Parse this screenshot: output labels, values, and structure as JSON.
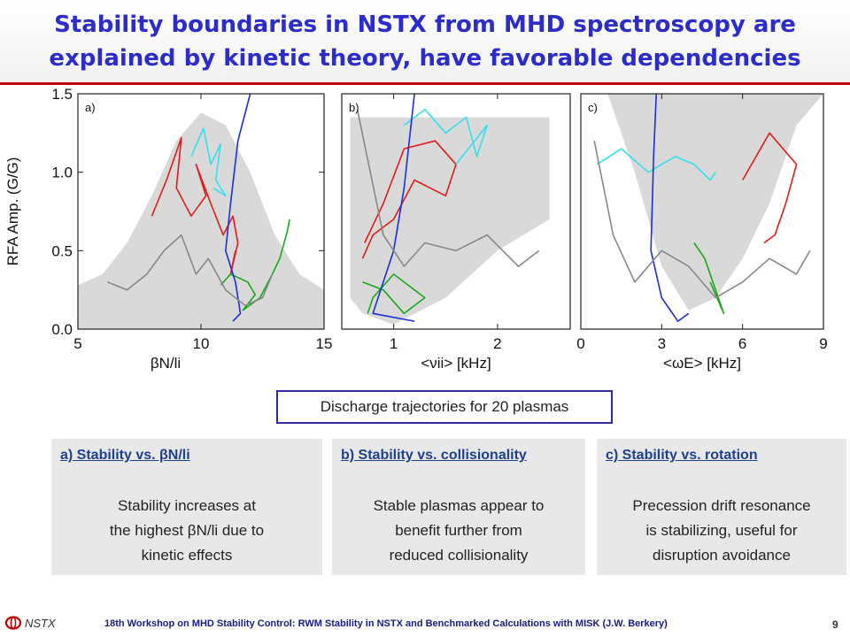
{
  "header": {
    "title_line1": "Stability boundaries in NSTX from MHD spectroscopy are",
    "title_line2": "explained by kinetic theory, have favorable dependencies"
  },
  "chart_data": [
    {
      "type": "line",
      "panel_label": "a)",
      "xlabel": "βN/li",
      "ylabel": "RFA Amp. (G/G)",
      "xlim": [
        5,
        15
      ],
      "ylim": [
        0.0,
        1.5
      ],
      "xticks": [
        "5",
        "10",
        "15"
      ],
      "yticks": [
        "0.0",
        "0.5",
        "1.0",
        "1.5"
      ],
      "stable_region": {
        "type": "bell",
        "x": [
          5,
          6,
          7,
          8,
          9,
          10,
          11,
          12,
          13,
          14,
          15
        ],
        "y": [
          0.28,
          0.35,
          0.55,
          0.85,
          1.2,
          1.38,
          1.3,
          1.0,
          0.6,
          0.35,
          0.25
        ]
      },
      "series": [
        {
          "color": "#e21a1a",
          "x": [
            8.0,
            8.6,
            9.2,
            9.0,
            9.6,
            10.2,
            9.8,
            10.4,
            10.9,
            11.3,
            11.5,
            11.2,
            11.4
          ],
          "y": [
            0.72,
            0.95,
            1.22,
            0.9,
            0.72,
            0.85,
            1.05,
            0.8,
            0.6,
            0.72,
            0.55,
            0.35,
            0.5
          ]
        },
        {
          "color": "#1aa81a",
          "x": [
            10.8,
            11.2,
            11.9,
            12.2,
            11.7,
            12.4,
            12.9,
            13.2,
            13.5,
            13.6
          ],
          "y": [
            0.28,
            0.35,
            0.3,
            0.22,
            0.12,
            0.2,
            0.35,
            0.45,
            0.62,
            0.7
          ]
        },
        {
          "color": "#33e0f0",
          "x": [
            9.6,
            10.1,
            10.4,
            10.8,
            10.6,
            11.0,
            10.5
          ],
          "y": [
            1.1,
            1.28,
            1.05,
            1.18,
            0.95,
            0.85,
            0.9
          ]
        },
        {
          "color": "#1a2fd8",
          "x": [
            12.0,
            11.5,
            11.2,
            11.0,
            11.4,
            11.6,
            11.3
          ],
          "y": [
            1.5,
            1.2,
            0.8,
            0.5,
            0.3,
            0.1,
            0.05
          ]
        },
        {
          "color": "#888888",
          "x": [
            6.2,
            7.0,
            7.8,
            8.5,
            9.2,
            9.8,
            10.3,
            11.0,
            11.8,
            12.5,
            12.9
          ],
          "y": [
            0.3,
            0.25,
            0.35,
            0.5,
            0.6,
            0.35,
            0.45,
            0.25,
            0.15,
            0.2,
            0.35
          ]
        }
      ]
    },
    {
      "type": "line",
      "panel_label": "b)",
      "xlabel": "<νii> [kHz]",
      "ylabel": "",
      "xlim": [
        0.5,
        2.7
      ],
      "ylim": [
        0.0,
        1.5
      ],
      "xticks": [
        "1",
        "2"
      ],
      "yticks": [],
      "stable_region": {
        "type": "box_with_curve",
        "x": [
          0.58,
          0.7,
          1.0,
          1.5,
          2.0,
          2.5,
          2.5,
          0.58
        ],
        "y": [
          0.2,
          0.1,
          0.03,
          0.2,
          0.5,
          0.7,
          1.35,
          1.35
        ]
      },
      "series": [
        {
          "color": "#e21a1a",
          "x": [
            0.72,
            0.9,
            1.1,
            1.4,
            1.6,
            1.5,
            1.2,
            1.0,
            0.8,
            0.7
          ],
          "y": [
            0.55,
            0.8,
            1.15,
            1.2,
            1.05,
            0.85,
            0.95,
            0.7,
            0.6,
            0.45
          ]
        },
        {
          "color": "#1aa81a",
          "x": [
            0.7,
            0.9,
            1.1,
            1.3,
            1.0,
            0.8,
            0.75
          ],
          "y": [
            0.3,
            0.25,
            0.1,
            0.2,
            0.35,
            0.2,
            0.1
          ]
        },
        {
          "color": "#33e0f0",
          "x": [
            1.1,
            1.3,
            1.5,
            1.7,
            1.8,
            1.9,
            1.6
          ],
          "y": [
            1.3,
            1.4,
            1.25,
            1.35,
            1.1,
            1.3,
            1.05
          ]
        },
        {
          "color": "#1a2fd8",
          "x": [
            1.2,
            1.1,
            1.0,
            0.9,
            0.8,
            1.2
          ],
          "y": [
            1.5,
            0.9,
            0.5,
            0.3,
            0.1,
            0.05
          ]
        },
        {
          "color": "#888888",
          "x": [
            0.65,
            0.9,
            1.1,
            1.3,
            1.6,
            1.9,
            2.2,
            2.4
          ],
          "y": [
            1.4,
            0.6,
            0.4,
            0.55,
            0.5,
            0.6,
            0.4,
            0.5
          ]
        }
      ]
    },
    {
      "type": "line",
      "panel_label": "c)",
      "xlabel": "<ωE> [kHz]",
      "ylabel": "",
      "xlim": [
        0,
        9
      ],
      "ylim": [
        0.0,
        1.5
      ],
      "xticks": [
        "0",
        "3",
        "6",
        "9"
      ],
      "yticks": [],
      "stable_region": {
        "type": "valley",
        "x": [
          0,
          1,
          2,
          3,
          4,
          5,
          6,
          7,
          8,
          9
        ],
        "y": [
          1.5,
          1.5,
          1.0,
          0.4,
          0.12,
          0.2,
          0.45,
          0.8,
          1.3,
          1.6
        ]
      },
      "series": [
        {
          "color": "#e21a1a",
          "x": [
            6.0,
            6.5,
            7.0,
            7.5,
            8.0,
            7.6,
            7.2,
            6.8
          ],
          "y": [
            0.95,
            1.1,
            1.25,
            1.15,
            1.05,
            0.8,
            0.6,
            0.55
          ]
        },
        {
          "color": "#1aa81a",
          "x": [
            4.2,
            4.6,
            5.0,
            5.3,
            4.8
          ],
          "y": [
            0.55,
            0.45,
            0.25,
            0.1,
            0.3
          ]
        },
        {
          "color": "#33e0f0",
          "x": [
            0.6,
            1.5,
            2.5,
            3.5,
            4.2,
            4.8,
            5.0
          ],
          "y": [
            1.05,
            1.15,
            1.0,
            1.1,
            1.05,
            0.95,
            1.0
          ]
        },
        {
          "color": "#1a2fd8",
          "x": [
            2.8,
            2.7,
            2.6,
            3.0,
            3.6,
            4.0
          ],
          "y": [
            1.5,
            1.1,
            0.5,
            0.2,
            0.05,
            0.1
          ]
        },
        {
          "color": "#888888",
          "x": [
            0.5,
            1.2,
            2.0,
            3.0,
            4.0,
            5.0,
            6.0,
            7.0,
            8.0,
            8.5
          ],
          "y": [
            1.2,
            0.6,
            0.3,
            0.5,
            0.4,
            0.2,
            0.3,
            0.45,
            0.35,
            0.5
          ]
        }
      ]
    }
  ],
  "trajectories_note": "Discharge trajectories for 20 plasmas",
  "panels": [
    {
      "heading": "a) Stability vs. βN/li",
      "body_line1": "Stability increases at",
      "body_line2": "the highest βN/li due to",
      "body_line3": "kinetic effects"
    },
    {
      "heading": "b) Stability vs. collisionality",
      "body_line1": "Stable plasmas appear to",
      "body_line2": "benefit further from",
      "body_line3": "reduced collisionality"
    },
    {
      "heading": "c) Stability vs. rotation",
      "body_line1": "Precession drift resonance",
      "body_line2": "is stabilizing, useful for",
      "body_line3": "disruption avoidance"
    }
  ],
  "footer": {
    "logo_text": "NSTX",
    "text": "18th Workshop on MHD Stability Control: RWM Stability in NSTX and Benchmarked Calculations with MISK (J.W. Berkery)",
    "page_number": "9"
  }
}
